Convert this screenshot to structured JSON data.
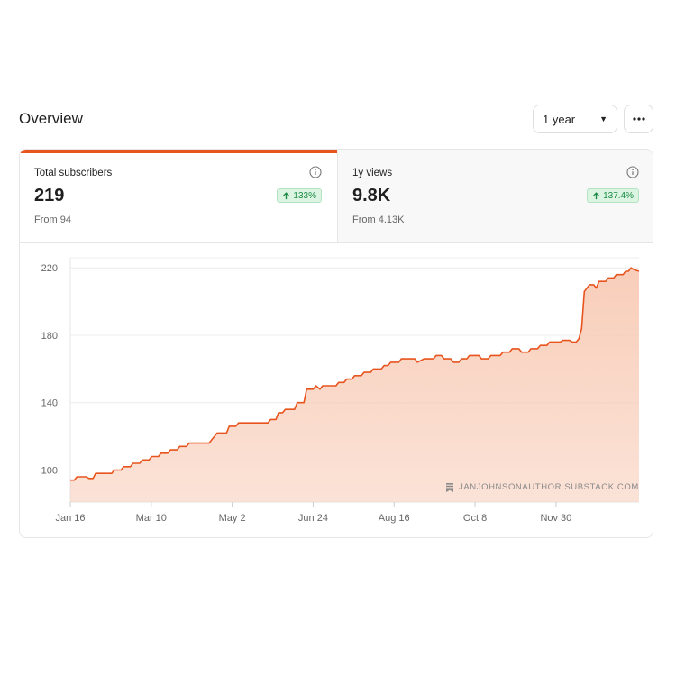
{
  "header": {
    "title": "Overview",
    "range_label": "1 year",
    "more_icon": "more-horizontal-icon"
  },
  "stats": [
    {
      "label": "Total subscribers",
      "value": "219",
      "change": "133%",
      "from": "From 94",
      "active": true
    },
    {
      "label": "1y views",
      "value": "9.8K",
      "change": "137.4%",
      "from": "From 4.13K",
      "active": false
    }
  ],
  "colors": {
    "accent": "#e8541e",
    "fill": "#f8cbb6",
    "badge_text": "#1c8a45",
    "badge_bg": "#dcf5e3"
  },
  "watermark": "JANJOHNSONAUTHOR.SUBSTACK.COM",
  "chart_data": {
    "type": "area",
    "title": "",
    "xlabel": "",
    "ylabel": "",
    "x_ticks": [
      "Jan 16",
      "Mar 10",
      "May 2",
      "Jun 24",
      "Aug 16",
      "Oct 8",
      "Nov 30"
    ],
    "y_ticks": [
      100,
      140,
      180,
      220
    ],
    "ylim": [
      81,
      226
    ],
    "grid": true,
    "series": [
      {
        "values": [
          [
            0,
            94
          ],
          [
            3,
            94
          ],
          [
            5,
            96
          ],
          [
            12,
            96
          ],
          [
            14,
            95
          ],
          [
            17,
            95
          ],
          [
            19,
            98
          ],
          [
            31,
            98
          ],
          [
            33,
            100
          ],
          [
            38,
            100
          ],
          [
            40,
            102
          ],
          [
            45,
            102
          ],
          [
            47,
            104
          ],
          [
            52,
            104
          ],
          [
            54,
            106
          ],
          [
            59,
            106
          ],
          [
            61,
            108
          ],
          [
            66,
            108
          ],
          [
            68,
            110
          ],
          [
            73,
            110
          ],
          [
            75,
            112
          ],
          [
            80,
            112
          ],
          [
            82,
            114
          ],
          [
            87,
            114
          ],
          [
            89,
            116
          ],
          [
            104,
            116
          ],
          [
            106,
            118
          ],
          [
            108,
            120
          ],
          [
            110,
            122
          ],
          [
            117,
            122
          ],
          [
            119,
            126
          ],
          [
            124,
            126
          ],
          [
            126,
            128
          ],
          [
            148,
            128
          ],
          [
            150,
            130
          ],
          [
            154,
            130
          ],
          [
            156,
            134
          ],
          [
            159,
            134
          ],
          [
            161,
            136
          ],
          [
            168,
            136
          ],
          [
            170,
            140
          ],
          [
            175,
            140
          ],
          [
            177,
            148
          ],
          [
            182,
            148
          ],
          [
            184,
            150
          ],
          [
            187,
            148
          ],
          [
            189,
            150
          ],
          [
            199,
            150
          ],
          [
            201,
            152
          ],
          [
            205,
            152
          ],
          [
            207,
            154
          ],
          [
            211,
            154
          ],
          [
            213,
            156
          ],
          [
            218,
            156
          ],
          [
            220,
            158
          ],
          [
            225,
            158
          ],
          [
            227,
            160
          ],
          [
            233,
            160
          ],
          [
            235,
            162
          ],
          [
            238,
            162
          ],
          [
            240,
            164
          ],
          [
            246,
            164
          ],
          [
            248,
            166
          ],
          [
            258,
            166
          ],
          [
            260,
            164
          ],
          [
            265,
            166
          ],
          [
            272,
            166
          ],
          [
            274,
            168
          ],
          [
            278,
            168
          ],
          [
            280,
            166
          ],
          [
            285,
            166
          ],
          [
            287,
            164
          ],
          [
            291,
            164
          ],
          [
            293,
            166
          ],
          [
            297,
            166
          ],
          [
            299,
            168
          ],
          [
            306,
            168
          ],
          [
            308,
            166
          ],
          [
            313,
            166
          ],
          [
            315,
            168
          ],
          [
            322,
            168
          ],
          [
            324,
            170
          ],
          [
            329,
            170
          ],
          [
            331,
            172
          ],
          [
            336,
            172
          ],
          [
            338,
            170
          ],
          [
            343,
            170
          ],
          [
            345,
            172
          ],
          [
            350,
            172
          ],
          [
            352,
            174
          ],
          [
            357,
            174
          ],
          [
            359,
            176
          ],
          [
            367,
            176
          ],
          [
            369,
            177
          ],
          [
            374,
            177
          ],
          [
            376,
            176
          ],
          [
            379,
            176
          ],
          [
            381,
            178
          ],
          [
            383,
            184
          ],
          [
            385,
            206
          ],
          [
            387,
            208
          ],
          [
            389,
            210
          ],
          [
            392,
            210
          ],
          [
            394,
            208
          ],
          [
            396,
            212
          ],
          [
            401,
            212
          ],
          [
            403,
            214
          ],
          [
            407,
            214
          ],
          [
            409,
            216
          ],
          [
            414,
            216
          ],
          [
            416,
            218
          ],
          [
            418,
            218
          ],
          [
            420,
            220
          ],
          [
            422,
            219
          ],
          [
            426,
            218
          ]
        ]
      }
    ]
  }
}
